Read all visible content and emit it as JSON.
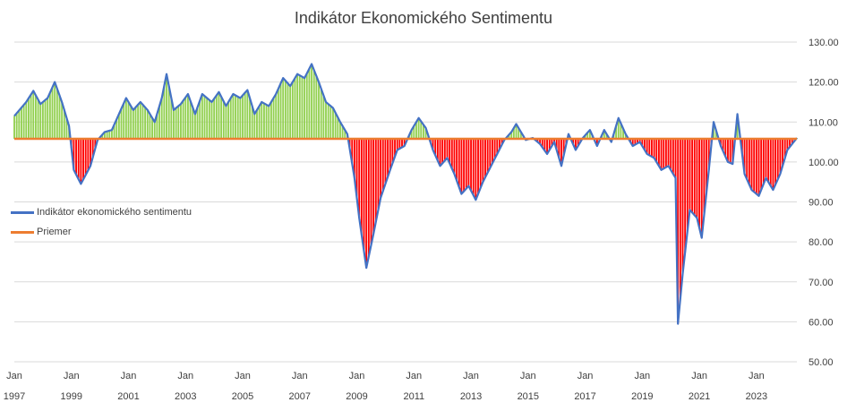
{
  "chart_data": {
    "type": "area",
    "title": "Indikátor Ekonomického Sentimentu",
    "xlabel": "",
    "ylabel": "",
    "ylim": [
      50,
      130
    ],
    "y_ticks": [
      "50.00",
      "60.00",
      "70.00",
      "80.00",
      "90.00",
      "100.00",
      "110.00",
      "120.00",
      "130.00"
    ],
    "x_month_label": "Jan",
    "x_year_labels": [
      "1997",
      "1999",
      "2001",
      "2003",
      "2005",
      "2007",
      "2009",
      "2011",
      "2013",
      "2015",
      "2017",
      "2019",
      "2021",
      "2023"
    ],
    "x_range": [
      "1997-01",
      "2024-06"
    ],
    "frequency": "monthly",
    "grid": true,
    "legend_position": "left-middle",
    "colors": {
      "indicator": "#4472c4",
      "average": "#ed7d31",
      "above": "#92d050",
      "below": "#ff0000"
    },
    "series": [
      {
        "name": "Indikátor ekonomického sentimentu",
        "keypoints": [
          [
            "1997-01",
            111.5
          ],
          [
            "1997-06",
            115.0
          ],
          [
            "1997-09",
            117.8
          ],
          [
            "1997-12",
            114.5
          ],
          [
            "1998-03",
            116.0
          ],
          [
            "1998-06",
            120.0
          ],
          [
            "1998-09",
            115.0
          ],
          [
            "1998-12",
            109.0
          ],
          [
            "1999-02",
            98.0
          ],
          [
            "1999-05",
            94.5
          ],
          [
            "1999-09",
            99.0
          ],
          [
            "1999-12",
            105.5
          ],
          [
            "2000-03",
            107.5
          ],
          [
            "2000-06",
            108.0
          ],
          [
            "2000-09",
            112.0
          ],
          [
            "2000-12",
            116.0
          ],
          [
            "2001-03",
            113.0
          ],
          [
            "2001-06",
            115.0
          ],
          [
            "2001-09",
            113.0
          ],
          [
            "2001-12",
            110.0
          ],
          [
            "2002-03",
            116.0
          ],
          [
            "2002-05",
            122.0
          ],
          [
            "2002-08",
            113.0
          ],
          [
            "2002-11",
            114.5
          ],
          [
            "2003-02",
            117.0
          ],
          [
            "2003-05",
            112.0
          ],
          [
            "2003-08",
            117.0
          ],
          [
            "2003-12",
            115.0
          ],
          [
            "2004-03",
            117.5
          ],
          [
            "2004-06",
            114.0
          ],
          [
            "2004-09",
            117.0
          ],
          [
            "2004-12",
            116.0
          ],
          [
            "2005-03",
            118.0
          ],
          [
            "2005-06",
            112.0
          ],
          [
            "2005-09",
            115.0
          ],
          [
            "2005-12",
            114.0
          ],
          [
            "2006-03",
            117.0
          ],
          [
            "2006-06",
            121.0
          ],
          [
            "2006-09",
            119.0
          ],
          [
            "2006-12",
            122.0
          ],
          [
            "2007-03",
            121.0
          ],
          [
            "2007-06",
            124.5
          ],
          [
            "2007-09",
            120.0
          ],
          [
            "2007-12",
            115.0
          ],
          [
            "2008-03",
            113.5
          ],
          [
            "2008-06",
            110.0
          ],
          [
            "2008-09",
            107.0
          ],
          [
            "2008-12",
            96.0
          ],
          [
            "2009-02",
            86.0
          ],
          [
            "2009-05",
            73.5
          ],
          [
            "2009-08",
            82.0
          ],
          [
            "2009-11",
            91.0
          ],
          [
            "2010-03",
            98.0
          ],
          [
            "2010-06",
            103.0
          ],
          [
            "2010-09",
            104.0
          ],
          [
            "2010-12",
            108.0
          ],
          [
            "2011-03",
            111.0
          ],
          [
            "2011-06",
            108.5
          ],
          [
            "2011-09",
            103.0
          ],
          [
            "2011-12",
            99.0
          ],
          [
            "2012-03",
            101.0
          ],
          [
            "2012-06",
            97.0
          ],
          [
            "2012-09",
            92.0
          ],
          [
            "2012-12",
            94.0
          ],
          [
            "2013-03",
            90.5
          ],
          [
            "2013-06",
            95.0
          ],
          [
            "2013-09",
            98.5
          ],
          [
            "2013-12",
            102.0
          ],
          [
            "2014-03",
            105.5
          ],
          [
            "2014-06",
            107.5
          ],
          [
            "2014-08",
            109.5
          ],
          [
            "2014-12",
            105.5
          ],
          [
            "2015-03",
            106.0
          ],
          [
            "2015-06",
            104.5
          ],
          [
            "2015-09",
            102.0
          ],
          [
            "2015-12",
            105.0
          ],
          [
            "2016-03",
            99.0
          ],
          [
            "2016-06",
            107.0
          ],
          [
            "2016-09",
            103.0
          ],
          [
            "2016-12",
            106.0
          ],
          [
            "2017-03",
            108.0
          ],
          [
            "2017-06",
            104.0
          ],
          [
            "2017-09",
            108.0
          ],
          [
            "2017-12",
            105.0
          ],
          [
            "2018-03",
            111.0
          ],
          [
            "2018-06",
            107.0
          ],
          [
            "2018-09",
            104.0
          ],
          [
            "2018-12",
            105.0
          ],
          [
            "2019-03",
            102.0
          ],
          [
            "2019-06",
            101.0
          ],
          [
            "2019-09",
            98.0
          ],
          [
            "2019-12",
            99.0
          ],
          [
            "2020-03",
            96.0
          ],
          [
            "2020-04",
            59.5
          ],
          [
            "2020-06",
            72.0
          ],
          [
            "2020-09",
            88.0
          ],
          [
            "2020-12",
            86.0
          ],
          [
            "2021-02",
            81.0
          ],
          [
            "2021-05",
            98.0
          ],
          [
            "2021-07",
            110.0
          ],
          [
            "2021-10",
            104.0
          ],
          [
            "2022-01",
            100.0
          ],
          [
            "2022-03",
            99.5
          ],
          [
            "2022-05",
            112.0
          ],
          [
            "2022-08",
            97.0
          ],
          [
            "2022-11",
            93.0
          ],
          [
            "2023-02",
            91.5
          ],
          [
            "2023-05",
            96.0
          ],
          [
            "2023-08",
            93.0
          ],
          [
            "2023-11",
            97.0
          ],
          [
            "2024-02",
            103.0
          ],
          [
            "2024-06",
            106.0
          ]
        ]
      },
      {
        "name": "Priemer",
        "value": 105.8
      }
    ]
  }
}
